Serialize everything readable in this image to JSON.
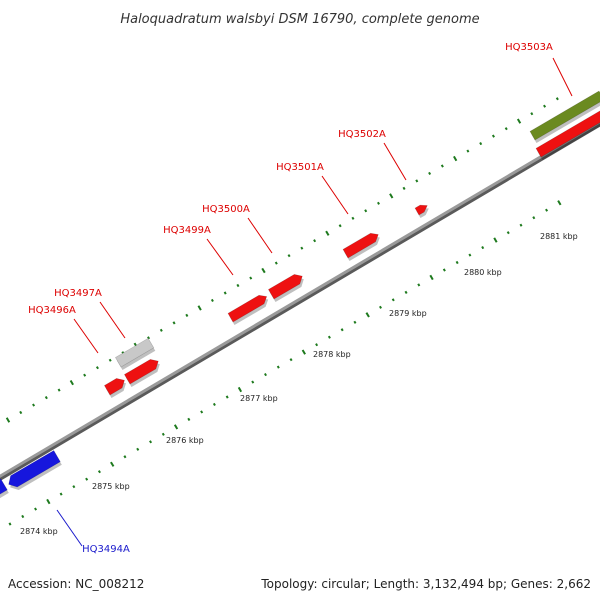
{
  "title": "Haloquadratum walsbyi DSM 16790, complete genome",
  "colors": {
    "forward_gene": "#ee1111",
    "reverse_gene": "#1616dd",
    "pseudo_gene": "#c8c8c8",
    "olive_feature": "#6b8a20",
    "tick": "#1e7a1e",
    "backbone": "#8a8a8a",
    "label_red": "#dd0000",
    "label_blue": "#1a1acc"
  },
  "gene_labels": [
    {
      "id": "HQ3503A",
      "text": "HQ3503A",
      "color": "red"
    },
    {
      "id": "HQ3502A",
      "text": "HQ3502A",
      "color": "red"
    },
    {
      "id": "HQ3501A",
      "text": "HQ3501A",
      "color": "red"
    },
    {
      "id": "HQ3500A",
      "text": "HQ3500A",
      "color": "red"
    },
    {
      "id": "HQ3499A",
      "text": "HQ3499A",
      "color": "red"
    },
    {
      "id": "HQ3497A",
      "text": "HQ3497A",
      "color": "red"
    },
    {
      "id": "HQ3496A",
      "text": "HQ3496A",
      "color": "red"
    },
    {
      "id": "HQ3494A",
      "text": "HQ3494A",
      "color": "blue"
    }
  ],
  "kbp_labels": [
    "2874 kbp",
    "2875 kbp",
    "2876 kbp",
    "2877 kbp",
    "2878 kbp",
    "2879 kbp",
    "2880 kbp",
    "2881 kbp"
  ],
  "footer": {
    "accession": "Accession: NC_008212",
    "stats": "Topology: circular; Length: 3,132,494 bp; Genes: 2,662"
  }
}
